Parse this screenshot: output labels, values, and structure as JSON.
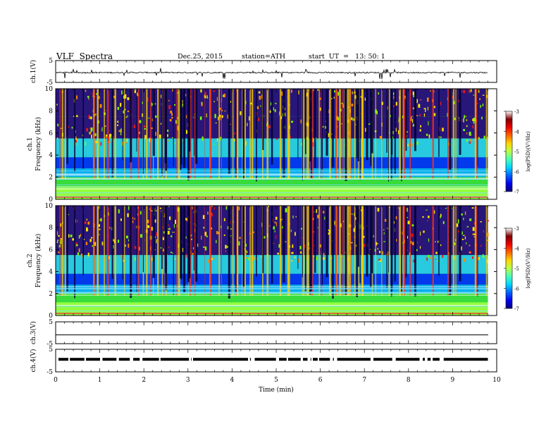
{
  "header": {
    "title": "VLF  Spectra",
    "date": "Dec.25, 2015",
    "station": "station=ATH",
    "start": "start  UT  =   13: 50: 1"
  },
  "chart_data": [
    {
      "type": "line",
      "panel": "ch1-waveform",
      "ylabel": "ch.1(V)",
      "ylim": [
        -5,
        5
      ],
      "y_ticks": [
        "5",
        "-5"
      ],
      "baseline": -0.5,
      "color": "#000000"
    },
    {
      "type": "heatmap",
      "panel": "ch1-spectrogram",
      "ylabel_channel": "ch.1",
      "ylabel": "Frequency  (kHz)",
      "ylim": [
        0,
        10
      ],
      "y_ticks": [
        "0",
        "2",
        "4",
        "6",
        "8",
        "10"
      ],
      "colorbar": {
        "label": "log(PSD)(V²/Hz)",
        "range": [
          -7,
          -3
        ],
        "ticks": [
          "-3",
          "-4",
          "-5",
          "-6",
          "-7"
        ]
      }
    },
    {
      "type": "heatmap",
      "panel": "ch2-spectrogram",
      "ylabel_channel": "ch.2",
      "ylabel": "Frequency  (kHz)",
      "ylim": [
        0,
        10
      ],
      "y_ticks": [
        "0",
        "2",
        "4",
        "6",
        "8",
        "10"
      ],
      "colorbar": {
        "label": "log(PSD)(V²/Hz)",
        "range": [
          -7,
          -3
        ],
        "ticks": [
          "-3",
          "-4",
          "-5",
          "-6",
          "-7"
        ]
      }
    },
    {
      "type": "line",
      "panel": "ch3-waveform",
      "ylabel": "ch.3(V)",
      "ylim": [
        -5,
        5
      ],
      "y_ticks": [
        "5",
        "-5"
      ],
      "value": 0
    },
    {
      "type": "line",
      "panel": "ch4-waveform",
      "ylabel": "ch.4(V)",
      "ylim": [
        -5,
        5
      ],
      "y_ticks": [
        "5",
        "-5"
      ],
      "value": -1,
      "xlabel": "Time  (min)",
      "xlim": [
        0,
        10
      ],
      "x_ticks": [
        "0",
        "1",
        "2",
        "3",
        "4",
        "5",
        "6",
        "7",
        "8",
        "9",
        "10"
      ]
    }
  ]
}
